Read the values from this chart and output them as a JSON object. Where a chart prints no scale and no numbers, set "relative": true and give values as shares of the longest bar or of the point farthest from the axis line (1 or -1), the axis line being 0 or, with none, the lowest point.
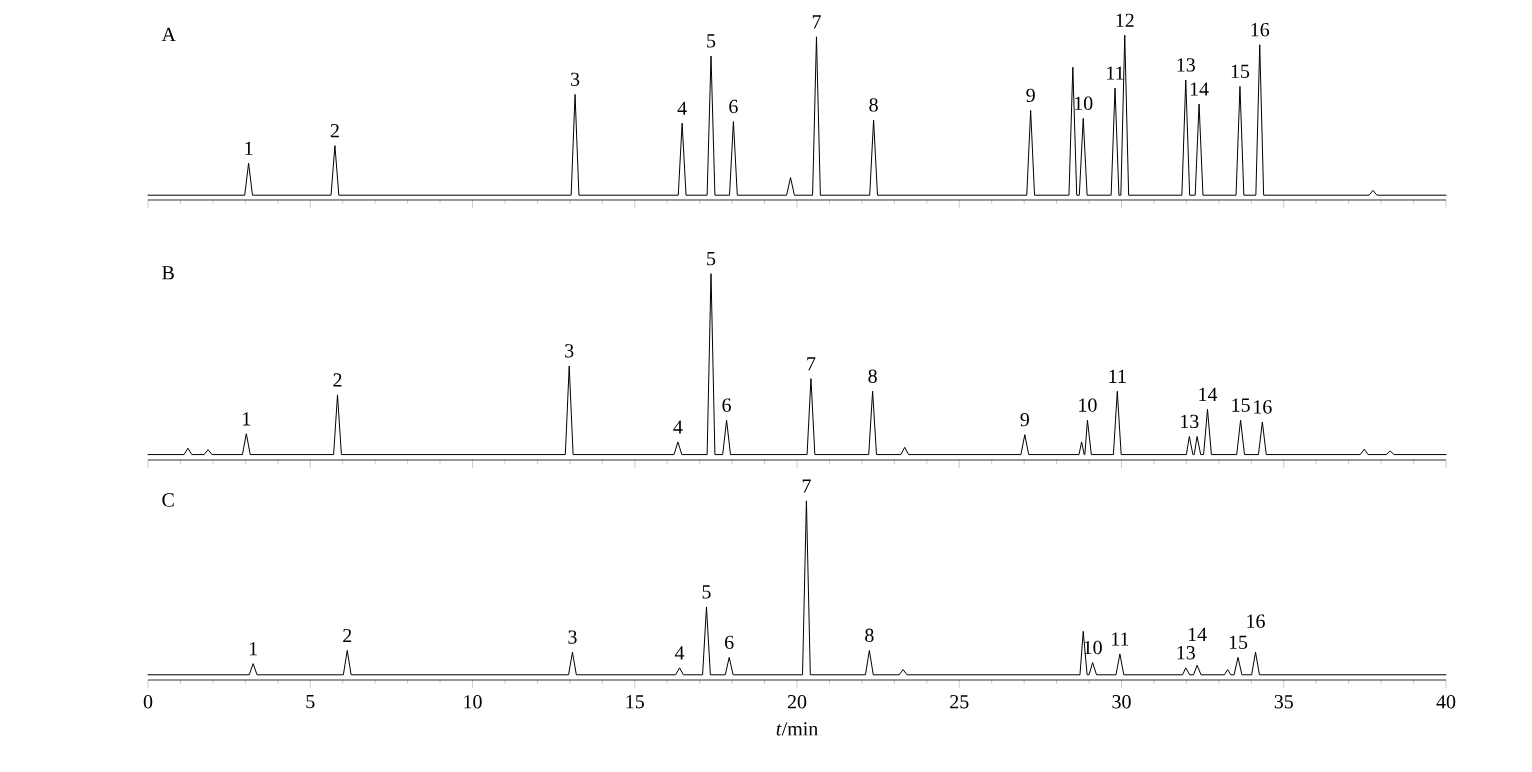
{
  "chart_data": [
    {
      "type": "line",
      "title": "A",
      "relative": true,
      "xlim": [
        0,
        40
      ],
      "xticks": [
        0,
        5,
        10,
        15,
        20,
        25,
        30,
        35,
        40
      ],
      "tick_labels": false,
      "x": [
        0,
        2.98,
        3.1,
        3.22,
        5.64,
        5.76,
        5.88,
        13.04,
        13.16,
        13.28,
        16.34,
        16.46,
        16.58,
        17.23,
        17.35,
        17.47,
        17.92,
        18.04,
        18.16,
        19.68,
        19.8,
        19.92,
        20.48,
        20.6,
        20.72,
        22.24,
        22.36,
        22.48,
        27.08,
        27.2,
        27.32,
        28.38,
        28.5,
        28.62,
        28.7,
        28.82,
        28.94,
        29.68,
        29.8,
        29.92,
        29.98,
        30.1,
        30.22,
        31.86,
        31.98,
        32.1,
        32.27,
        32.39,
        32.51,
        33.53,
        33.65,
        33.77,
        34.14,
        34.26,
        34.38,
        37.63,
        37.75,
        37.87,
        40
      ],
      "series": [
        {
          "color": "#000000",
          "values": [
            0,
            0,
            0.2,
            0,
            0,
            0.31,
            0,
            0,
            0.63,
            0,
            0,
            0.45,
            0,
            0,
            0.87,
            0,
            0,
            0.46,
            0,
            0,
            0.11,
            0,
            0,
            0.99,
            0,
            0,
            0.47,
            0,
            0,
            0.53,
            0,
            0,
            0.8,
            0,
            0,
            0.48,
            0,
            0,
            0.67,
            0,
            0,
            1,
            0,
            0,
            0.72,
            0,
            0,
            0.57,
            0,
            0,
            0.68,
            0,
            0,
            0.94,
            0,
            0,
            0.03,
            0,
            0
          ]
        }
      ],
      "annotations": [
        {
          "text": "1",
          "x": 3.1,
          "y": 0.2
        },
        {
          "text": "2",
          "x": 5.76,
          "y": 0.31
        },
        {
          "text": "3",
          "x": 13.16,
          "y": 0.63
        },
        {
          "text": "4",
          "x": 16.46,
          "y": 0.45
        },
        {
          "text": "5",
          "x": 17.35,
          "y": 0.87
        },
        {
          "text": "6",
          "x": 18.04,
          "y": 0.46
        },
        {
          "text": "7",
          "x": 20.6,
          "y": 0.99
        },
        {
          "text": "8",
          "x": 22.36,
          "y": 0.47
        },
        {
          "text": "9",
          "x": 27.2,
          "y": 0.53
        },
        {
          "text": "10",
          "x": 28.82,
          "y": 0.48
        },
        {
          "text": "11",
          "x": 29.8,
          "y": 0.67
        },
        {
          "text": "12",
          "x": 30.1,
          "y": 1
        },
        {
          "text": "13",
          "x": 31.98,
          "y": 0.72
        },
        {
          "text": "14",
          "x": 32.39,
          "y": 0.57
        },
        {
          "text": "15",
          "x": 33.65,
          "y": 0.68
        },
        {
          "text": "16",
          "x": 34.26,
          "y": 0.94
        }
      ]
    },
    {
      "type": "line",
      "title": "B",
      "relative": true,
      "xlim": [
        0,
        40
      ],
      "xticks": [
        0,
        5,
        10,
        15,
        20,
        25,
        30,
        35,
        40
      ],
      "tick_labels": false,
      "x": [
        0,
        1.11,
        1.23,
        1.35,
        1.73,
        1.85,
        1.97,
        2.91,
        3.03,
        3.15,
        5.72,
        5.84,
        5.96,
        12.86,
        12.98,
        13.1,
        16.21,
        16.33,
        16.45,
        17.23,
        17.35,
        17.47,
        17.71,
        17.83,
        17.95,
        20.31,
        20.43,
        20.55,
        22.21,
        22.33,
        22.45,
        23.2,
        23.32,
        23.44,
        26.9,
        27.02,
        27.14,
        28.69,
        28.77,
        28.85,
        28.87,
        28.95,
        29.07,
        29.75,
        29.87,
        29.99,
        32.0,
        32.09,
        32.2,
        32.24,
        32.33,
        32.44,
        32.53,
        32.65,
        32.77,
        33.55,
        33.67,
        33.79,
        34.22,
        34.34,
        34.46,
        37.36,
        37.48,
        37.6,
        38.16,
        38.28,
        38.4,
        40
      ],
      "series": [
        {
          "color": "#000000",
          "values": [
            0,
            0,
            0.035,
            0,
            0,
            0.027,
            0,
            0,
            0.115,
            0,
            0,
            0.33,
            0,
            0,
            0.49,
            0,
            0,
            0.07,
            0,
            0,
            1,
            0,
            0,
            0.19,
            0,
            0,
            0.42,
            0,
            0,
            0.35,
            0,
            0,
            0.04,
            0,
            0,
            0.11,
            0,
            0,
            0.07,
            0,
            0,
            0.19,
            0,
            0,
            0.35,
            0,
            0,
            0.1,
            0,
            0,
            0.1,
            0,
            0,
            0.25,
            0,
            0,
            0.19,
            0,
            0,
            0.18,
            0,
            0,
            0.03,
            0,
            0,
            0.02,
            0,
            0
          ]
        }
      ],
      "annotations": [
        {
          "text": "1",
          "x": 3.03,
          "y": 0.115
        },
        {
          "text": "2",
          "x": 5.84,
          "y": 0.33
        },
        {
          "text": "3",
          "x": 12.98,
          "y": 0.49
        },
        {
          "text": "4",
          "x": 16.33,
          "y": 0.07
        },
        {
          "text": "5",
          "x": 17.35,
          "y": 1
        },
        {
          "text": "6",
          "x": 17.83,
          "y": 0.19
        },
        {
          "text": "7",
          "x": 20.43,
          "y": 0.42
        },
        {
          "text": "8",
          "x": 22.33,
          "y": 0.35
        },
        {
          "text": "9",
          "x": 27.02,
          "y": 0.11
        },
        {
          "text": "10",
          "x": 28.95,
          "y": 0.19
        },
        {
          "text": "11",
          "x": 29.87,
          "y": 0.35
        },
        {
          "text": "13",
          "x": 32.09,
          "y": 0.1
        },
        {
          "text": "14",
          "x": 32.65,
          "y": 0.25
        },
        {
          "text": "15",
          "x": 33.67,
          "y": 0.19
        },
        {
          "text": "16",
          "x": 34.34,
          "y": 0.18
        }
      ]
    },
    {
      "type": "line",
      "title": "C",
      "relative": true,
      "xlim": [
        0,
        40
      ],
      "xticks": [
        0,
        5,
        10,
        15,
        20,
        25,
        30,
        35,
        40
      ],
      "tick_labels": "x",
      "xlabel": "*t*/min",
      "x": [
        0,
        3.12,
        3.24,
        3.36,
        6.02,
        6.14,
        6.26,
        12.96,
        13.08,
        13.2,
        16.26,
        16.38,
        16.5,
        17.09,
        17.21,
        17.33,
        17.79,
        17.91,
        18.03,
        20.17,
        20.29,
        20.41,
        22.11,
        22.23,
        22.35,
        23.15,
        23.27,
        23.39,
        28.72,
        28.82,
        28.94,
        29.0,
        29.11,
        29.23,
        29.83,
        29.95,
        30.07,
        31.88,
        31.98,
        32.1,
        32.22,
        32.33,
        32.45,
        33.17,
        33.27,
        33.37,
        33.47,
        33.59,
        33.71,
        34.01,
        34.13,
        34.25,
        40
      ],
      "series": [
        {
          "color": "#000000",
          "values": [
            0,
            0,
            0.064,
            0,
            0,
            0.14,
            0,
            0,
            0.13,
            0,
            0,
            0.04,
            0,
            0,
            0.39,
            0,
            0,
            0.1,
            0,
            0,
            1,
            0,
            0,
            0.14,
            0,
            0,
            0.03,
            0,
            0,
            0.25,
            0,
            0,
            0.07,
            0,
            0,
            0.12,
            0,
            0,
            0.04,
            0,
            0,
            0.055,
            0,
            0,
            0.03,
            0,
            0,
            0.1,
            0,
            0,
            0.13,
            0,
            0
          ]
        }
      ],
      "annotations": [
        {
          "text": "1",
          "x": 3.24,
          "y": 0.064
        },
        {
          "text": "2",
          "x": 6.14,
          "y": 0.14
        },
        {
          "text": "3",
          "x": 13.08,
          "y": 0.13
        },
        {
          "text": "4",
          "x": 16.38,
          "y": 0.04
        },
        {
          "text": "5",
          "x": 17.21,
          "y": 0.39
        },
        {
          "text": "6",
          "x": 17.91,
          "y": 0.1
        },
        {
          "text": "7",
          "x": 20.29,
          "y": 1
        },
        {
          "text": "8",
          "x": 22.23,
          "y": 0.14
        },
        {
          "text": "10",
          "x": 29.11,
          "y": 0.07
        },
        {
          "text": "11",
          "x": 29.95,
          "y": 0.12
        },
        {
          "text": "13",
          "x": 31.98,
          "y": 0.04
        },
        {
          "text": "14",
          "x": 32.33,
          "y": 0.055
        },
        {
          "text": "15",
          "x": 33.59,
          "y": 0.1
        },
        {
          "text": "16",
          "x": 34.13,
          "y": 0.13
        }
      ]
    }
  ]
}
